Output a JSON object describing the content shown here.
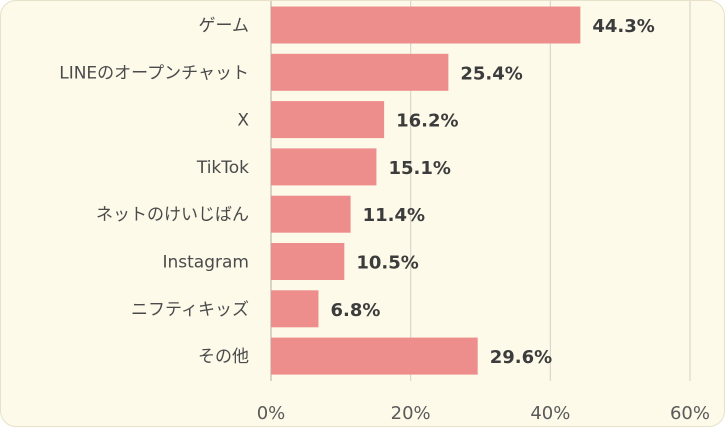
{
  "chart_data": {
    "type": "bar",
    "orientation": "horizontal",
    "categories": [
      "ゲーム",
      "LINEのオープンチャット",
      "X",
      "TikTok",
      "ネットのけいじばん",
      "Instagram",
      "ニフティキッズ",
      "その他"
    ],
    "values": [
      44.3,
      25.4,
      16.2,
      15.1,
      11.4,
      10.5,
      6.8,
      29.6
    ],
    "value_labels": [
      "44.3%",
      "25.4%",
      "16.2%",
      "15.1%",
      "11.4%",
      "10.5%",
      "6.8%",
      "29.6%"
    ],
    "xlim": [
      0,
      60
    ],
    "x_ticks": [
      0,
      20,
      40,
      60
    ],
    "x_tick_labels": [
      "0%",
      "20%",
      "40%",
      "60%"
    ],
    "title": "",
    "xlabel": "",
    "ylabel": "",
    "grid": "vertical",
    "legend": "none",
    "colors": {
      "bar": "#ee8e8c",
      "background": "#fdfaea",
      "border": "#e6e1c8"
    }
  }
}
